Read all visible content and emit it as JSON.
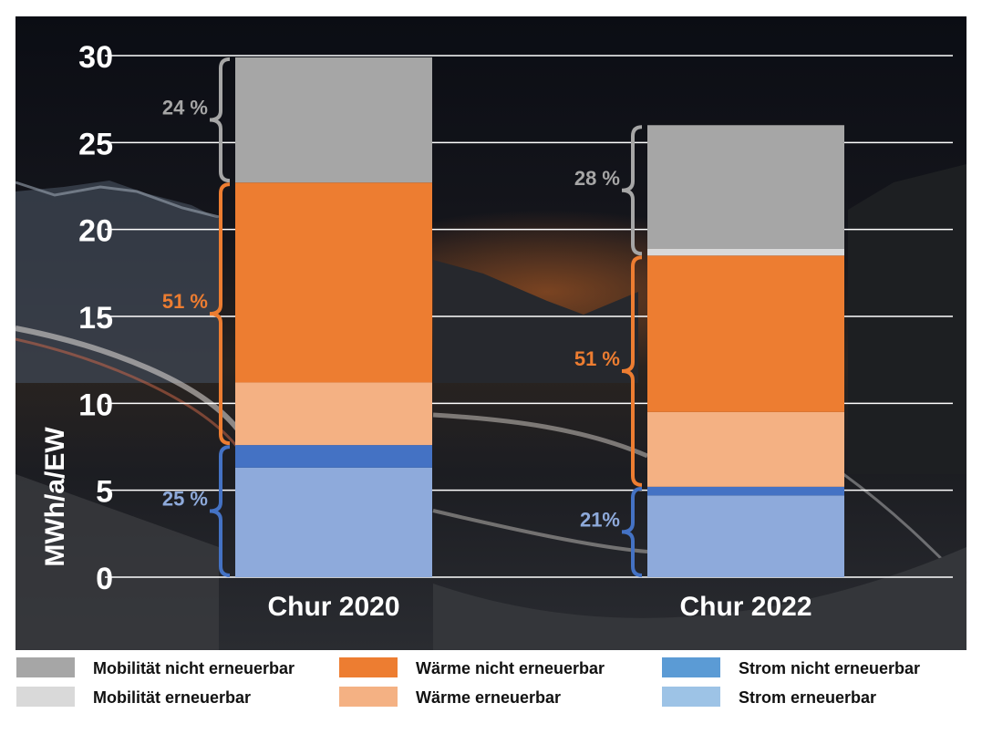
{
  "chart_data": {
    "type": "bar",
    "stacked": true,
    "ylabel": "MWh/a/EW",
    "ylim": [
      0,
      30
    ],
    "yticks": [
      0,
      5,
      10,
      15,
      20,
      25,
      30
    ],
    "grid": true,
    "categories": [
      "Chur 2020",
      "Chur 2022"
    ],
    "series": [
      {
        "name": "Strom erneuerbar",
        "values": [
          6.3,
          4.7
        ],
        "color": "#8eaadb"
      },
      {
        "name": "Strom nicht erneuerbar",
        "values": [
          1.3,
          0.5
        ],
        "color": "#4472c4"
      },
      {
        "name": "Wärme erneuerbar",
        "values": [
          3.6,
          4.3
        ],
        "color": "#f4b183"
      },
      {
        "name": "Wärme nicht erneuerbar",
        "values": [
          11.5,
          9.0
        ],
        "color": "#ed7d31"
      },
      {
        "name": "Mobilität erneuerbar",
        "values": [
          0.0,
          0.4
        ],
        "color": "#d9d9d9"
      },
      {
        "name": "Mobilität nicht erneuerbar",
        "values": [
          7.2,
          7.1
        ],
        "color": "#a6a6a6"
      }
    ],
    "group_labels": [
      {
        "group": "Strom",
        "color": "#4472c4",
        "labels": [
          "25 %",
          "21%"
        ]
      },
      {
        "group": "Wärme",
        "color": "#ed7d31",
        "labels": [
          "51 %",
          "51 %"
        ]
      },
      {
        "group": "Mobilität",
        "color": "#a6a6a6",
        "labels": [
          "24 %",
          "28 %"
        ]
      }
    ],
    "legend_position": "bottom",
    "legend": [
      {
        "name": "Mobilität nicht erneuerbar",
        "color": "#a6a6a6"
      },
      {
        "name": "Wärme nicht erneuerbar",
        "color": "#ed7d31"
      },
      {
        "name": "Strom nicht erneuerbar",
        "color": "#5b9bd5"
      },
      {
        "name": "Mobilität erneuerbar",
        "color": "#d9d9d9"
      },
      {
        "name": "Wärme erneuerbar",
        "color": "#f4b183"
      },
      {
        "name": "Strom erneuerbar",
        "color": "#9dc3e6"
      }
    ]
  }
}
